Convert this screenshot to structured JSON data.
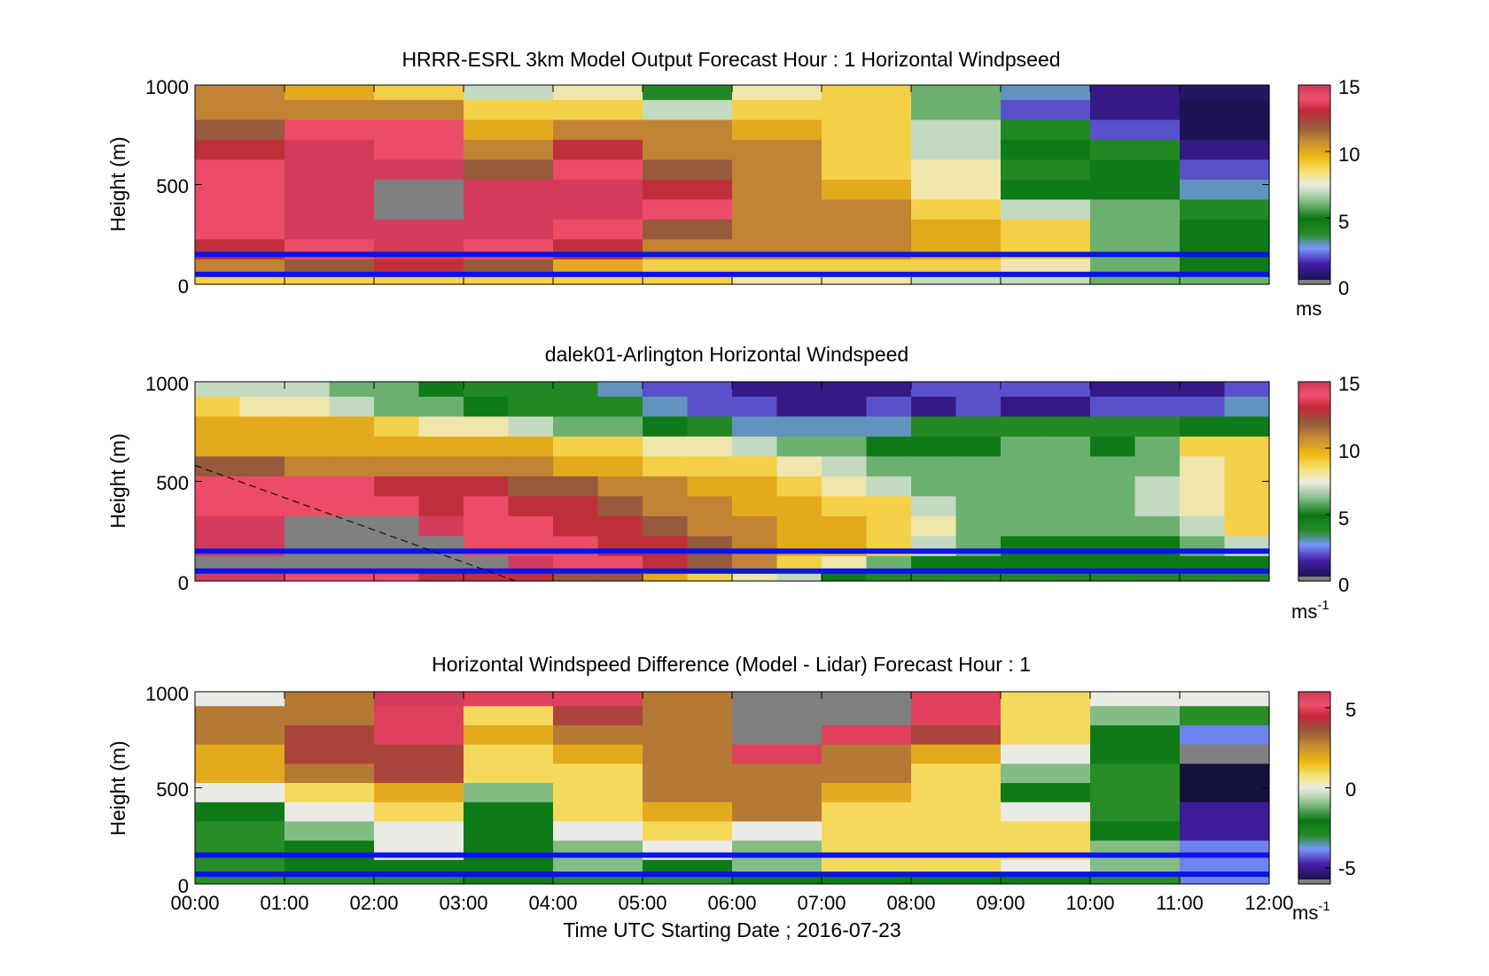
{
  "chart_data": [
    {
      "type": "heatmap",
      "title": "HRRR-ESRL 3km Model Output   Forecast Hour : 1 Horizontal Windpseed",
      "ylabel": "Height (m)",
      "ylim": [
        0,
        1000
      ],
      "yticks": [
        "0",
        "500",
        "1000"
      ],
      "colorbar": {
        "range": [
          0,
          15
        ],
        "ticks": [
          "0",
          "5",
          "10",
          "15"
        ],
        "unit": "ms",
        "unit_sup": ""
      },
      "columns": 12,
      "levels": [
        975,
        875,
        775,
        675,
        575,
        475,
        375,
        275,
        175,
        75,
        25
      ],
      "values": [
        [
          11,
          10,
          9,
          7,
          8,
          4,
          8,
          9,
          6,
          3,
          1,
          0.5
        ],
        [
          11,
          11,
          11,
          9,
          9,
          7,
          9,
          9,
          6,
          2,
          1,
          0.3
        ],
        [
          12,
          14,
          14,
          10,
          11,
          11,
          10,
          9,
          7,
          4,
          2,
          0.3
        ],
        [
          13,
          15,
          14,
          11,
          13,
          11,
          11,
          9,
          7,
          5,
          4,
          1
        ],
        [
          14,
          15,
          15,
          12,
          14,
          12,
          11,
          9,
          8,
          4,
          5,
          2
        ],
        [
          14,
          15,
          null,
          15,
          15,
          13,
          11,
          10,
          8,
          5,
          5,
          3
        ],
        [
          14,
          15,
          null,
          15,
          15,
          14,
          11,
          11,
          9,
          7,
          6,
          4
        ],
        [
          14,
          15,
          15,
          15,
          14,
          12,
          11,
          11,
          10,
          9,
          6,
          5
        ],
        [
          13,
          14,
          15,
          14,
          13,
          11,
          11,
          11,
          10,
          9,
          6,
          5
        ],
        [
          11,
          12,
          13,
          12,
          10,
          9,
          9,
          9,
          9,
          8,
          6,
          5
        ],
        [
          9,
          9,
          9,
          9,
          9,
          9,
          8,
          8,
          7,
          7,
          6,
          6
        ]
      ]
    },
    {
      "type": "heatmap",
      "title": "dalek01-Arlington  Horizontal Windspeed",
      "ylabel": "Height (m)",
      "ylim": [
        0,
        1000
      ],
      "yticks": [
        "0",
        "500",
        "1000"
      ],
      "colorbar": {
        "range": [
          0,
          15
        ],
        "ticks": [
          "0",
          "5",
          "10",
          "15"
        ],
        "unit": "ms",
        "unit_sup": "-1"
      },
      "columns": 24,
      "levels": [
        975,
        875,
        775,
        675,
        575,
        475,
        375,
        275,
        175,
        75,
        25
      ],
      "values": [
        [
          7,
          7,
          7,
          6,
          6,
          5,
          4,
          4,
          4,
          3,
          2,
          2,
          1,
          1,
          1,
          1,
          2,
          2,
          2,
          2,
          1,
          1,
          1,
          2
        ],
        [
          9,
          8,
          8,
          7,
          6,
          6,
          5,
          4,
          4,
          4,
          3,
          2,
          2,
          1,
          1,
          2,
          1,
          2,
          1,
          1,
          2,
          2,
          2,
          3
        ],
        [
          10,
          10,
          10,
          10,
          9,
          8,
          8,
          7,
          6,
          6,
          5,
          4,
          3,
          3,
          3,
          3,
          4,
          4,
          4,
          4,
          4,
          4,
          5,
          5
        ],
        [
          10,
          10,
          10,
          10,
          10,
          10,
          10,
          10,
          9,
          9,
          8,
          8,
          7,
          6,
          6,
          5,
          5,
          5,
          6,
          6,
          5,
          6,
          9,
          9
        ],
        [
          12,
          12,
          11,
          11,
          11,
          11,
          11,
          11,
          10,
          10,
          9,
          9,
          9,
          8,
          7,
          6,
          6,
          6,
          6,
          6,
          6,
          6,
          8,
          9
        ],
        [
          14,
          14,
          14,
          14,
          13,
          13,
          13,
          12,
          12,
          11,
          11,
          10,
          10,
          9,
          8,
          7,
          6,
          6,
          6,
          6,
          6,
          7,
          8,
          9
        ],
        [
          14,
          14,
          14,
          14,
          14,
          13,
          14,
          13,
          13,
          12,
          11,
          11,
          10,
          10,
          9,
          9,
          7,
          6,
          6,
          6,
          6,
          7,
          8,
          9
        ],
        [
          15,
          15,
          null,
          null,
          null,
          15,
          14,
          14,
          13,
          13,
          12,
          11,
          11,
          10,
          10,
          9,
          8,
          6,
          6,
          6,
          6,
          6,
          7,
          9
        ],
        [
          15,
          15,
          null,
          null,
          null,
          null,
          14,
          14,
          14,
          13,
          13,
          12,
          11,
          10,
          10,
          9,
          7,
          6,
          5,
          5,
          5,
          5,
          6,
          7
        ],
        [
          null,
          null,
          null,
          null,
          null,
          null,
          null,
          15,
          14,
          14,
          13,
          12,
          11,
          9,
          8,
          6,
          5,
          5,
          5,
          5,
          5,
          5,
          5,
          5
        ],
        [
          15,
          15,
          14,
          14,
          14,
          13,
          13,
          13,
          12,
          12,
          10,
          9,
          8,
          7,
          5,
          4,
          4,
          4,
          4,
          4,
          4,
          4,
          4,
          4
        ]
      ]
    },
    {
      "type": "heatmap",
      "title": "Horizontal Windspeed Difference (Model - Lidar) Forecast Hour : 1",
      "ylabel": "Height (m)",
      "xlabel": "Time UTC  Starting Date ; 2016-07-23",
      "ylim": [
        0,
        1000
      ],
      "yticks": [
        "0",
        "500",
        "1000"
      ],
      "xticks": [
        "00:00",
        "01:00",
        "02:00",
        "03:00",
        "04:00",
        "05:00",
        "06:00",
        "07:00",
        "08:00",
        "09:00",
        "10:00",
        "11:00",
        "12:00"
      ],
      "colorbar": {
        "range": [
          -6,
          6
        ],
        "ticks": [
          "-5",
          "0",
          "5"
        ],
        "unit": "ms",
        "unit_sup": "-1"
      },
      "columns": 12,
      "levels": [
        975,
        875,
        775,
        675,
        575,
        475,
        375,
        275,
        175,
        75,
        25
      ],
      "values": [
        [
          0,
          3,
          6,
          5,
          5,
          3,
          null,
          null,
          5,
          1,
          0,
          0
        ],
        [
          3,
          3,
          5,
          1,
          4,
          3,
          null,
          null,
          5,
          1,
          -1,
          -3
        ],
        [
          3,
          4,
          5,
          2,
          3,
          3,
          null,
          5,
          4,
          1,
          -2,
          -4
        ],
        [
          2,
          4,
          4,
          1,
          2,
          3,
          5,
          3,
          2,
          0,
          -2,
          null
        ],
        [
          2,
          3,
          4,
          1,
          1,
          3,
          3,
          3,
          1,
          -1,
          -3,
          -6
        ],
        [
          0,
          1,
          2,
          -1,
          1,
          3,
          3,
          2,
          1,
          -2,
          -3,
          -6
        ],
        [
          -2,
          0,
          1,
          -2,
          1,
          2,
          3,
          1,
          1,
          0,
          -3,
          -5
        ],
        [
          -3,
          -1,
          0,
          -2,
          0,
          1,
          0,
          1,
          1,
          1,
          -2,
          -5
        ],
        [
          -3,
          -2,
          0,
          -2,
          -1,
          0,
          -1,
          1,
          1,
          1,
          -1,
          -4
        ],
        [
          -3,
          -2,
          -2,
          -2,
          -1,
          -2,
          -1,
          1,
          1,
          0,
          -1,
          -4
        ],
        [
          -3,
          -3,
          -3,
          -2,
          -3,
          -3,
          -2,
          -2,
          -2,
          -2,
          -3,
          -4
        ]
      ]
    }
  ]
}
